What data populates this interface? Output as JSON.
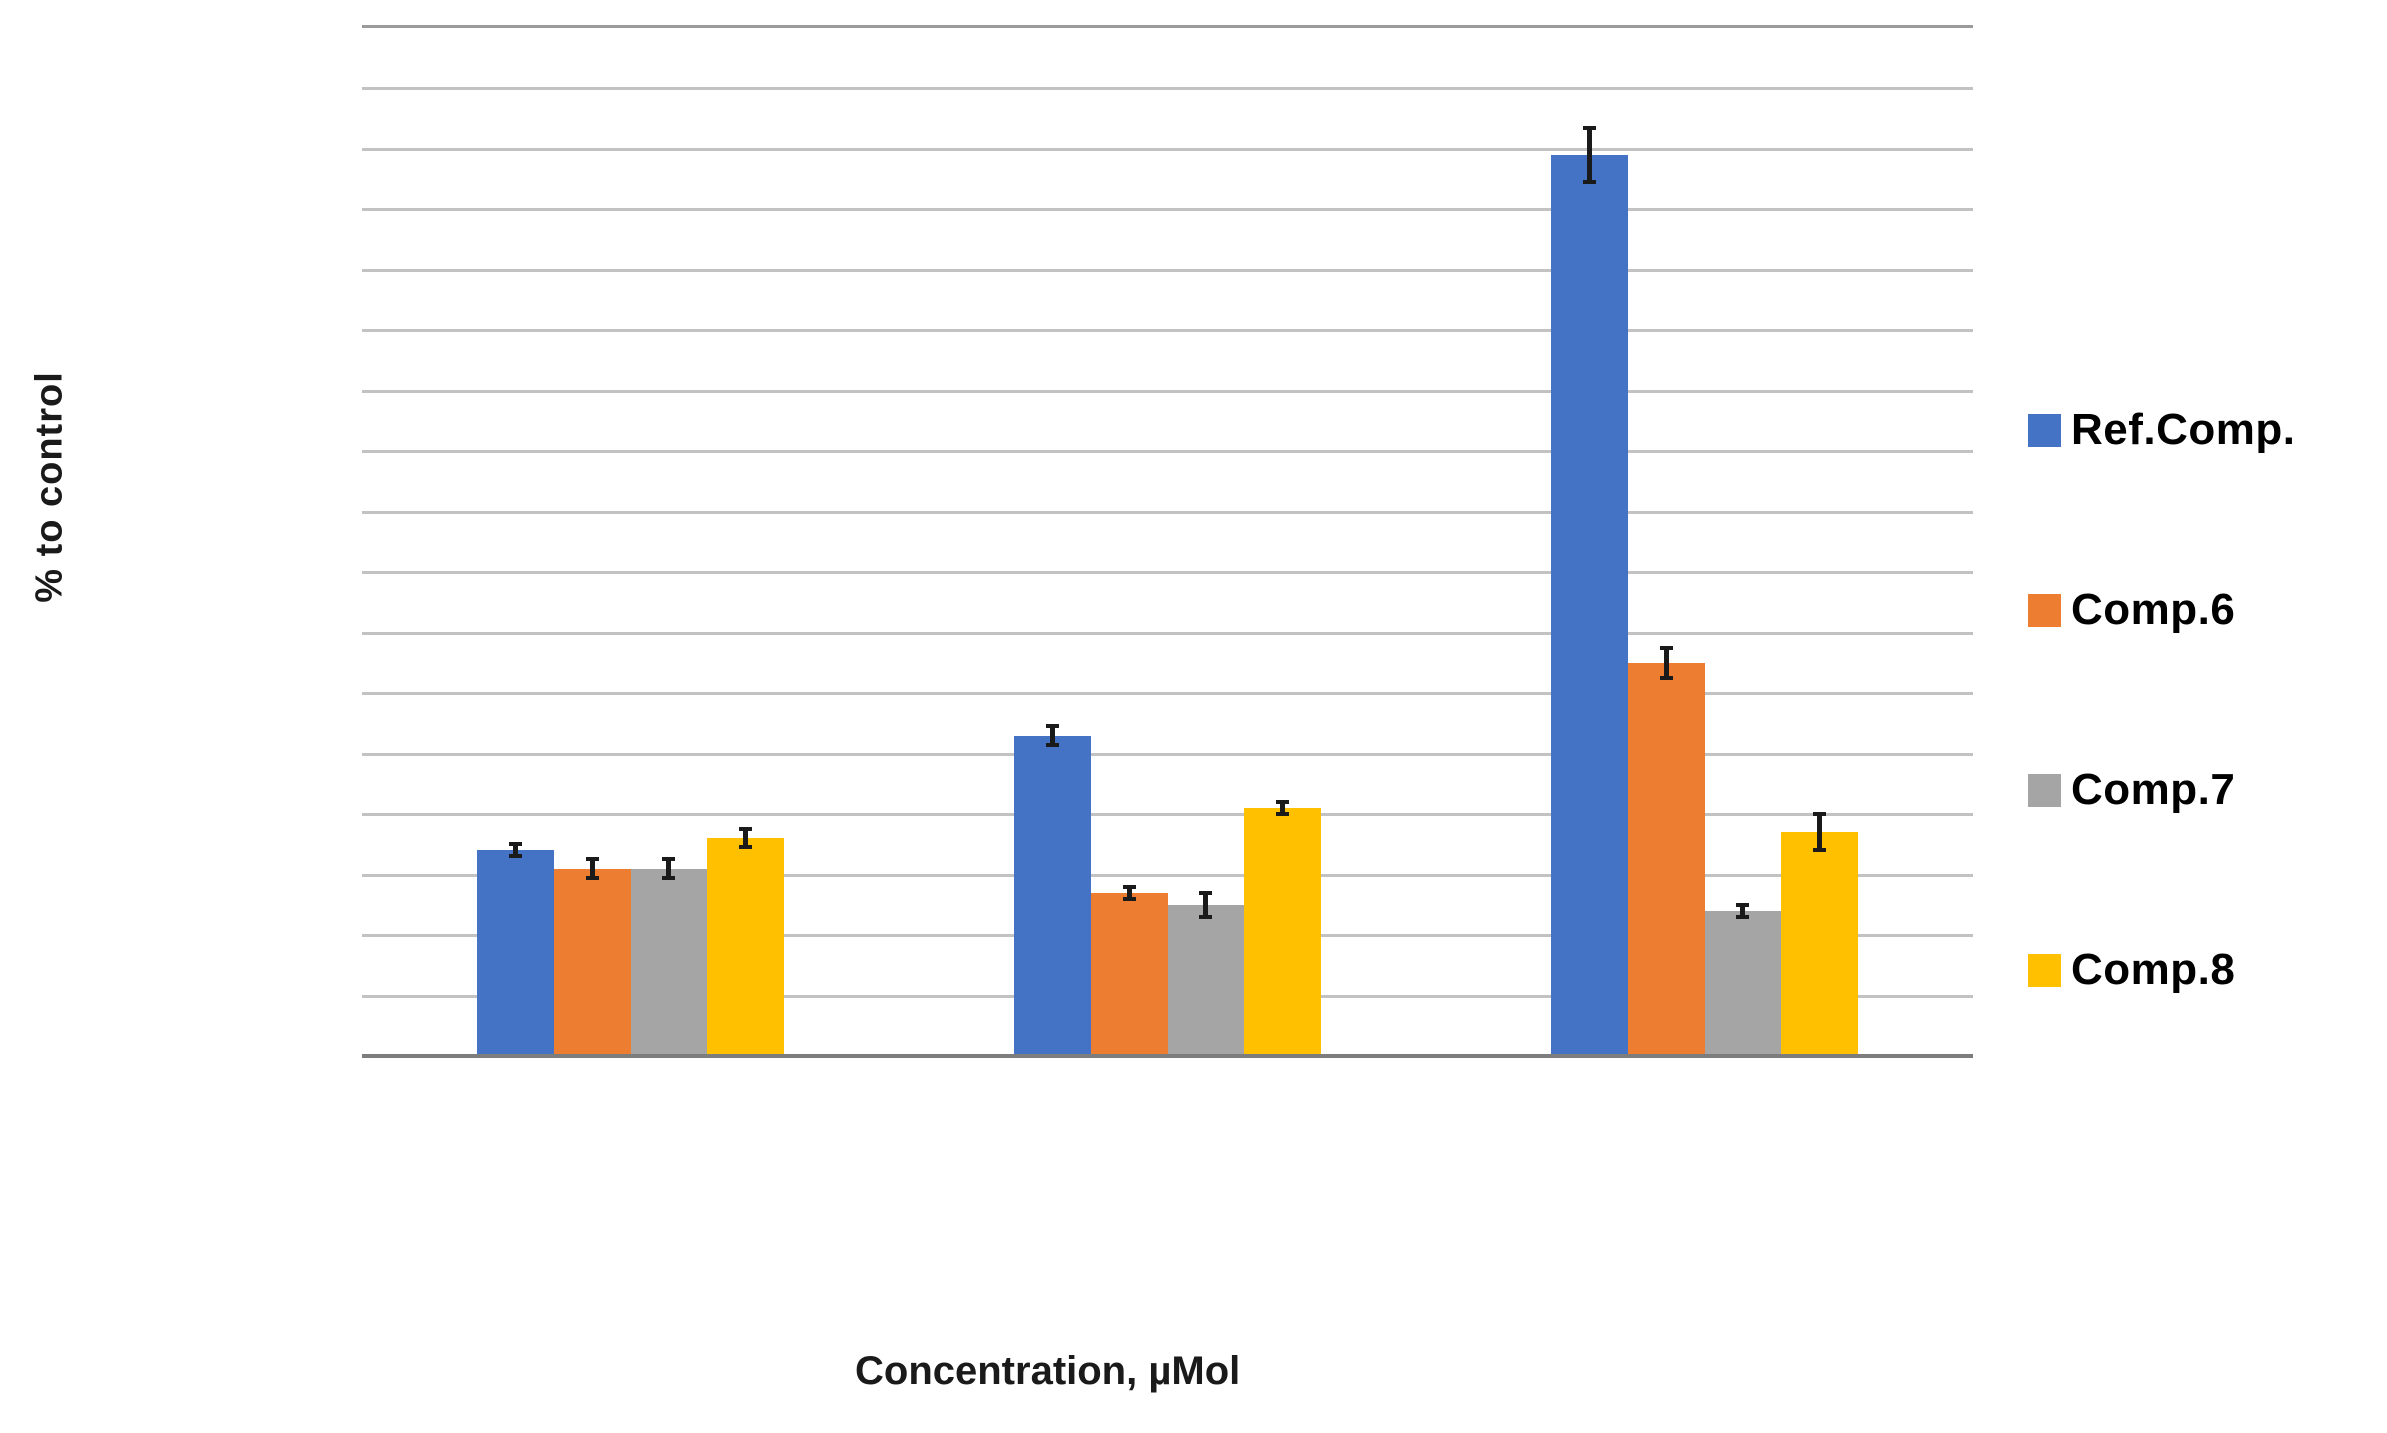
{
  "chart_data": {
    "type": "bar",
    "title": "",
    "xlabel": "Concentration, µMol",
    "ylabel": "% to control",
    "categories": [
      "",
      "",
      ""
    ],
    "series": [
      {
        "name": "Ref.Comp.",
        "color": "#4472C4",
        "values": [
          34,
          53,
          149
        ],
        "errors": [
          1,
          1.5,
          4.5
        ]
      },
      {
        "name": "Comp.6",
        "color": "#ED7D31",
        "values": [
          31,
          27,
          65
        ],
        "errors": [
          1.5,
          1,
          2.5
        ]
      },
      {
        "name": "Comp.7",
        "color": "#A5A5A5",
        "values": [
          31,
          25,
          24
        ],
        "errors": [
          1.5,
          2,
          1
        ]
      },
      {
        "name": "Comp.8",
        "color": "#FFC000",
        "values": [
          36,
          41,
          37
        ],
        "errors": [
          1.5,
          1,
          3
        ]
      }
    ],
    "error_bars": true,
    "ylim": [
      0,
      170
    ],
    "y_gridline_step": 10,
    "y_tick_labels_shown": false,
    "x_tick_labels_shown": false,
    "grid": true,
    "legend_position": "right",
    "colors": {
      "gridline": "#c2c2c2",
      "axis_line": "#7d7d7d",
      "plot_top_border": "#9a9a9a",
      "axis_title_text": "#1a1a1a",
      "legend_text": "#000000",
      "background": "#ffffff"
    }
  }
}
